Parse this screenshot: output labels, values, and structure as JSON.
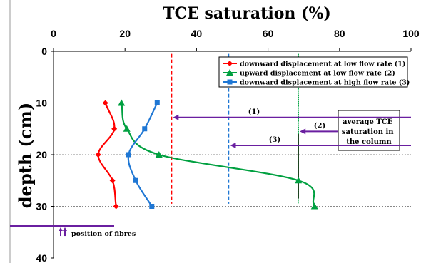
{
  "chart_data": {
    "type": "line",
    "title": "TCE saturation (%)",
    "xlabel": "TCE saturation (%)",
    "ylabel": "depth (cm)",
    "xlim": [
      0,
      100
    ],
    "ylim": [
      40,
      0
    ],
    "x_ticks": [
      "0",
      "20",
      "40",
      "60",
      "80",
      "100"
    ],
    "y_ticks": [
      "0",
      "10",
      "20",
      "30",
      "40"
    ],
    "x_axis_position": "top",
    "y_axis_inverted": true,
    "grid": "dashed horizontal lines at depth 10, 20, 30",
    "legend_position": "top-right",
    "series": [
      {
        "name": "downward displacement at low flow rate (1)",
        "color": "#ff0000",
        "marker": "diamond",
        "points": [
          {
            "x": 14.5,
            "y": 10
          },
          {
            "x": 17,
            "y": 15
          },
          {
            "x": 12.5,
            "y": 20
          },
          {
            "x": 16.5,
            "y": 25
          },
          {
            "x": 17.5,
            "y": 30
          }
        ]
      },
      {
        "name": "upward displacement at low flow rate (2)",
        "color": "#00a040",
        "marker": "triangle",
        "points": [
          {
            "x": 19,
            "y": 10
          },
          {
            "x": 20.5,
            "y": 15
          },
          {
            "x": 29.5,
            "y": 20
          },
          {
            "x": 68.5,
            "y": 25
          },
          {
            "x": 73,
            "y": 30
          }
        ]
      },
      {
        "name": "downward displacement at high flow rate (3)",
        "color": "#1f77d4",
        "marker": "square",
        "points": [
          {
            "x": 29,
            "y": 10
          },
          {
            "x": 25.5,
            "y": 15
          },
          {
            "x": 21,
            "y": 20
          },
          {
            "x": 23,
            "y": 25
          },
          {
            "x": 27.5,
            "y": 30
          }
        ]
      }
    ],
    "average_lines": [
      {
        "label": "(1)",
        "x": 33,
        "color": "#ff0000",
        "arrow_y": 12.8
      },
      {
        "label": "(2)",
        "x": 68.5,
        "color": "#00a040",
        "arrow_y": 15.5
      },
      {
        "label": "(3)",
        "x": 49,
        "color": "#1f77d4",
        "arrow_y": 18.2
      }
    ],
    "annotation_box": "average TCE saturation in the column",
    "fibres": {
      "label": "position of fibres",
      "y": 33.8,
      "color": "#6a1fa0",
      "arrow_color": "#6a1fa0"
    }
  }
}
